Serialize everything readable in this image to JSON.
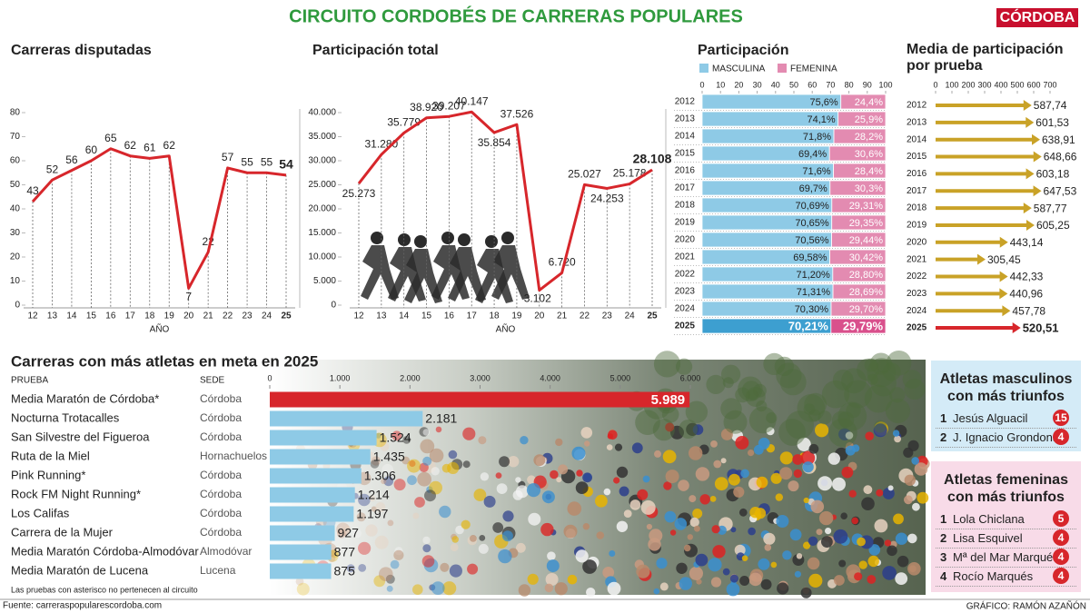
{
  "title": "CIRCUITO CORDOBÉS DE CARRERAS POPULARES",
  "brand": "CÓRDOBA",
  "chart_data": [
    {
      "type": "line",
      "title": "Carreras disputadas",
      "x_label": "AÑO",
      "categories": [
        "12",
        "13",
        "14",
        "15",
        "16",
        "17",
        "18",
        "19",
        "20",
        "21",
        "22",
        "23",
        "24",
        "25"
      ],
      "values": [
        43,
        52,
        56,
        60,
        65,
        62,
        61,
        62,
        7,
        22,
        57,
        55,
        55,
        54
      ],
      "color": "#d7262b",
      "ylim": [
        0,
        80
      ],
      "yticks": [
        0,
        10,
        20,
        30,
        40,
        50,
        60,
        70,
        80
      ]
    },
    {
      "type": "line",
      "title": "Participación total",
      "x_label": "AÑO",
      "categories": [
        "12",
        "13",
        "14",
        "15",
        "16",
        "17",
        "18",
        "19",
        "20",
        "21",
        "22",
        "23",
        "24",
        "25"
      ],
      "values": [
        25273,
        31280,
        35779,
        38920,
        39207,
        40147,
        35854,
        37526,
        3102,
        6720,
        25027,
        24253,
        25178,
        28108
      ],
      "value_labels": [
        "25.273",
        "31.280",
        "35.779",
        "38.920",
        "39.207",
        "40.147",
        "35.854",
        "37.526",
        "3.102",
        "6.720",
        "25.027",
        "24.253",
        "25.178",
        "28.108"
      ],
      "color": "#d7262b",
      "ylim": [
        0,
        40000
      ],
      "yticks": [
        0,
        {
          "value": 5000,
          "label": "5.000"
        },
        {
          "value": 10000,
          "label": "10.000"
        },
        {
          "value": 15000,
          "label": "15.000"
        },
        {
          "value": 20000,
          "label": "20.000"
        },
        {
          "value": 25000,
          "label": "25.000"
        },
        {
          "value": 30000,
          "label": "30.000"
        },
        {
          "value": 35000,
          "label": "35.000"
        },
        {
          "value": 40000,
          "label": "40.000"
        }
      ]
    },
    {
      "type": "stacked-bar",
      "title": "Participación",
      "categories": [
        "2012",
        "2013",
        "2014",
        "2015",
        "2016",
        "2017",
        "2018",
        "2019",
        "2020",
        "2021",
        "2022",
        "2023",
        "2024",
        "2025"
      ],
      "series": [
        {
          "name": "MASCULINA",
          "color": "#8ecae6",
          "highlight_color": "#3d9fd0",
          "values": [
            75.6,
            74.1,
            71.8,
            69.4,
            71.6,
            69.7,
            70.69,
            70.65,
            70.56,
            69.58,
            71.2,
            71.31,
            70.3,
            70.21
          ],
          "value_labels": [
            "75,6%",
            "74,1%",
            "71,8%",
            "69,4%",
            "71,6%",
            "69,7%",
            "70,69%",
            "70,65%",
            "70,56%",
            "69,58%",
            "71,20%",
            "71,31%",
            "70,30%",
            "70,21%"
          ]
        },
        {
          "name": "FEMENINA",
          "color": "#e38bb1",
          "highlight_color": "#d9508c",
          "values": [
            24.4,
            25.9,
            28.2,
            30.6,
            28.4,
            30.3,
            29.31,
            29.35,
            29.44,
            30.42,
            28.8,
            28.69,
            29.7,
            29.79
          ],
          "value_labels": [
            "24,4%",
            "25,9%",
            "28,2%",
            "30,6%",
            "28,4%",
            "30,3%",
            "29,31%",
            "29,35%",
            "29,44%",
            "30,42%",
            "28,80%",
            "28,69%",
            "29,70%",
            "29,79%"
          ]
        }
      ],
      "highlight_index": 13,
      "xlim": [
        0,
        100
      ],
      "xticks": [
        0,
        10,
        20,
        30,
        40,
        50,
        60,
        70,
        80,
        90,
        100
      ]
    },
    {
      "type": "arrow",
      "title": "Media de participación por prueba",
      "categories": [
        "2012",
        "2013",
        "2014",
        "2015",
        "2016",
        "2017",
        "2018",
        "2019",
        "2020",
        "2021",
        "2022",
        "2023",
        "2024",
        "2025"
      ],
      "values": [
        587.74,
        601.53,
        638.91,
        648.66,
        603.18,
        647.53,
        587.77,
        605.25,
        443.14,
        305.45,
        442.33,
        440.96,
        457.78,
        520.51
      ],
      "value_labels": [
        "587,74",
        "601,53",
        "638,91",
        "648,66",
        "603,18",
        "647,53",
        "587,77",
        "605,25",
        "443,14",
        "305,45",
        "442,33",
        "440,96",
        "457,78",
        "520,51"
      ],
      "color": "#c9a227",
      "highlight_color": "#d7262b",
      "highlight_index": 13,
      "xlim": [
        0,
        700
      ],
      "xticks": [
        0,
        100,
        200,
        300,
        400,
        500,
        600,
        700
      ]
    },
    {
      "type": "bar",
      "title": "Carreras con más atletas en meta en 2025",
      "columns": [
        "PRUEBA",
        "SEDE"
      ],
      "categories": [
        "Media Maratón de Córdoba*",
        "Nocturna Trotacalles",
        "San Silvestre del Figueroa",
        "Ruta de la Miel",
        "Pink Running*",
        "Rock FM Night Running*",
        "Los Califas",
        "Carrera de la Mujer",
        "Media Maratón Córdoba-Almodóvar",
        "Media Maratón de Lucena"
      ],
      "venues": [
        "Córdoba",
        "Córdoba",
        "Córdoba",
        "Hornachuelos",
        "Córdoba",
        "Córdoba",
        "Córdoba",
        "Córdoba",
        "Almodóvar",
        "Lucena"
      ],
      "values": [
        5989,
        2181,
        1524,
        1435,
        1306,
        1214,
        1197,
        927,
        877,
        875
      ],
      "value_labels": [
        "5.989",
        "2.181",
        "1.524",
        "1.435",
        "1.306",
        "1.214",
        "1.197",
        "927",
        "877",
        "875"
      ],
      "color": "#8ecae6",
      "highlight_color": "#d7262b",
      "highlight_index": 0,
      "xlim": [
        0,
        6000
      ],
      "xticks": [
        0,
        {
          "value": 1000,
          "label": "1.000"
        },
        {
          "value": 2000,
          "label": "2.000"
        },
        {
          "value": 3000,
          "label": "3.000"
        },
        {
          "value": 4000,
          "label": "4.000"
        },
        {
          "value": 5000,
          "label": "5.000"
        },
        {
          "value": 6000,
          "label": "6.000"
        }
      ],
      "note": "Las pruebas con asterisco no pertenecen al circuito"
    }
  ],
  "winners": [
    {
      "title": "Atletas masculinos con más triunfos",
      "color": "#d4ebf7",
      "rows": [
        {
          "rank": 1,
          "name": "Jesús Alguacil",
          "wins": 15
        },
        {
          "rank": 2,
          "name": "J. Ignacio Grondona",
          "wins": 4
        }
      ]
    },
    {
      "title": "Atletas femeninas con más triunfos",
      "color": "#f8dbe8",
      "rows": [
        {
          "rank": 1,
          "name": "Lola Chiclana",
          "wins": 5
        },
        {
          "rank": 2,
          "name": "Lisa Esquivel",
          "wins": 4
        },
        {
          "rank": 3,
          "name": "Mª del Mar Marqués",
          "wins": 4
        },
        {
          "rank": 4,
          "name": "Rocío Marqués",
          "wins": 4
        }
      ]
    }
  ],
  "footer": {
    "source": "Fuente: carreraspopularescordoba.com",
    "credit": "GRÁFICO: RAMÓN AZAÑÓN"
  }
}
